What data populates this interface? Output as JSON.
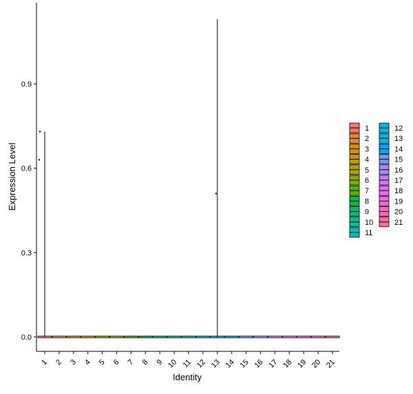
{
  "chart_data": {
    "type": "violin",
    "xlabel": "Identity",
    "ylabel": "Expression Level",
    "categories": [
      "1",
      "2",
      "3",
      "4",
      "5",
      "6",
      "7",
      "8",
      "9",
      "10",
      "11",
      "12",
      "13",
      "14",
      "15",
      "16",
      "17",
      "18",
      "19",
      "20",
      "21"
    ],
    "ylim": [
      -0.03,
      1.15
    ],
    "yticks": [
      0.0,
      0.3,
      0.6,
      0.9
    ],
    "ytick_labels": [
      "0.0",
      "0.3",
      "0.6",
      "0.9"
    ],
    "series": [
      {
        "category": "1",
        "max": 0.73,
        "color": "#F8766D",
        "outliers": [
          0.73,
          0.63
        ]
      },
      {
        "category": "2",
        "max": 0.0,
        "color": "#EB8335",
        "outliers": []
      },
      {
        "category": "3",
        "max": 0.0,
        "color": "#DA8F00",
        "outliers": []
      },
      {
        "category": "4",
        "max": 0.0,
        "color": "#C49A00",
        "outliers": []
      },
      {
        "category": "5",
        "max": 0.0,
        "color": "#A9A400",
        "outliers": []
      },
      {
        "category": "6",
        "max": 0.0,
        "color": "#86AC00",
        "outliers": []
      },
      {
        "category": "7",
        "max": 0.0,
        "color": "#53B400",
        "outliers": []
      },
      {
        "category": "8",
        "max": 0.0,
        "color": "#00BA38",
        "outliers": []
      },
      {
        "category": "9",
        "max": 0.0,
        "color": "#00BE6C",
        "outliers": []
      },
      {
        "category": "10",
        "max": 0.0,
        "color": "#00C094",
        "outliers": []
      },
      {
        "category": "11",
        "max": 0.0,
        "color": "#00C0B8",
        "outliers": []
      },
      {
        "category": "12",
        "max": 0.0,
        "color": "#00BCD8",
        "outliers": []
      },
      {
        "category": "13",
        "max": 1.13,
        "color": "#00B4F0",
        "outliers": [
          0.51
        ]
      },
      {
        "category": "14",
        "max": 0.0,
        "color": "#00A5FF",
        "outliers": []
      },
      {
        "category": "15",
        "max": 0.0,
        "color": "#6E97FF",
        "outliers": []
      },
      {
        "category": "16",
        "max": 0.0,
        "color": "#A58AFF",
        "outliers": []
      },
      {
        "category": "17",
        "max": 0.0,
        "color": "#CC7AFF",
        "outliers": []
      },
      {
        "category": "18",
        "max": 0.0,
        "color": "#E76BF3",
        "outliers": []
      },
      {
        "category": "19",
        "max": 0.0,
        "color": "#F766DF",
        "outliers": []
      },
      {
        "category": "20",
        "max": 0.0,
        "color": "#FF66C2",
        "outliers": []
      },
      {
        "category": "21",
        "max": 0.0,
        "color": "#FF6AA0",
        "outliers": []
      }
    ],
    "legend": {
      "placement": "right",
      "columns": 2,
      "items": [
        "1",
        "2",
        "3",
        "4",
        "5",
        "6",
        "7",
        "8",
        "9",
        "10",
        "11",
        "12",
        "13",
        "14",
        "15",
        "16",
        "17",
        "18",
        "19",
        "20",
        "21"
      ]
    },
    "grid": false
  }
}
